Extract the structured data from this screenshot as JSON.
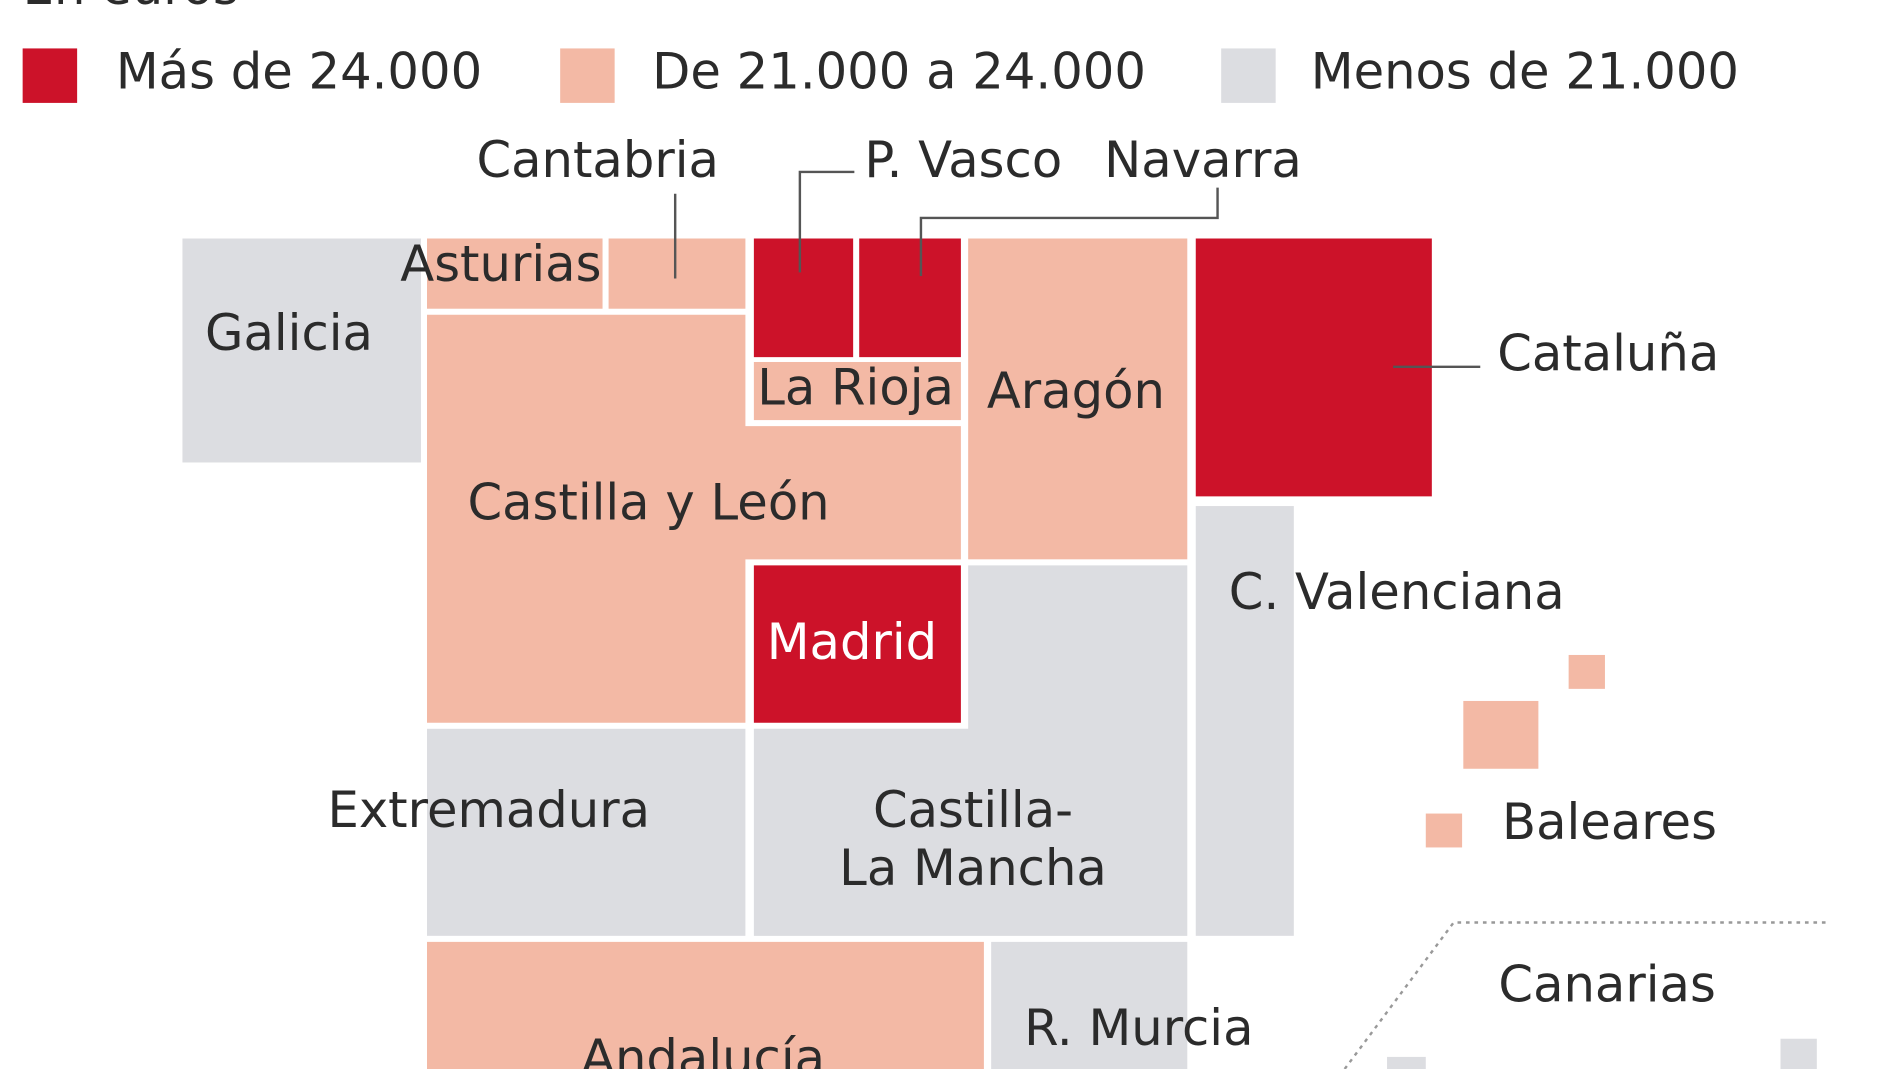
{
  "subtitle": "En euros",
  "legend": [
    "Más de 24.000",
    "De 21.000 a 24.000",
    "Menos de 21.000"
  ],
  "regions": {
    "galicia": "Galicia",
    "asturias": "Asturias",
    "cantabria": "Cantabria",
    "pais_vasco": "P. Vasco",
    "navarra": "Navarra",
    "la_rioja": "La Rioja",
    "aragon": "Aragón",
    "cataluna": "Cataluña",
    "castilla_leon": "Castilla y León",
    "madrid": "Madrid",
    "castilla_la_mancha": [
      "Castilla-",
      "La Mancha"
    ],
    "c_valenciana": "C. Valenciana",
    "extremadura": "Extremadura",
    "andalucia": "Andalucía",
    "murcia": "R. Murcia",
    "baleares": "Baleares",
    "canarias": "Canarias"
  }
}
